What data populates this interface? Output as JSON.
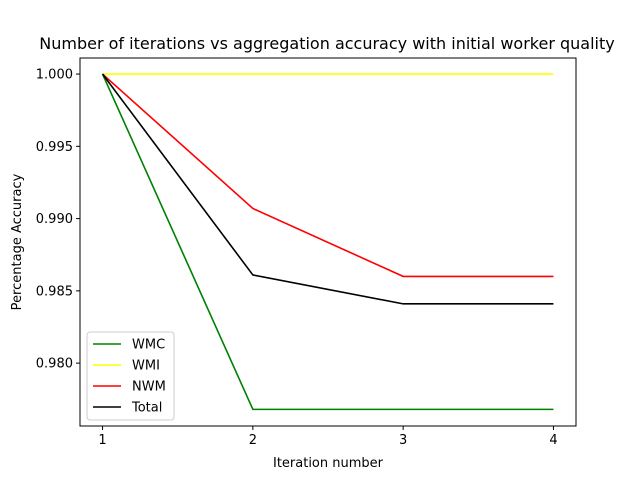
{
  "chart_data": {
    "type": "line",
    "title": "Number of iterations vs aggregation accuracy with initial worker quality",
    "xlabel": "Iteration number",
    "ylabel": "Percentage Accuracy",
    "x": [
      1,
      2,
      3,
      4
    ],
    "x_ticks": [
      "1",
      "2",
      "3",
      "4"
    ],
    "y_ticks": [
      "0.980",
      "0.985",
      "0.990",
      "0.995",
      "1.000"
    ],
    "xlim": [
      0.85,
      4.15
    ],
    "ylim": [
      0.97565,
      1.00111
    ],
    "legend_position": "lower-left",
    "series": [
      {
        "name": "WMC",
        "color": "#008000",
        "values": [
          1.0,
          0.9768,
          0.9768,
          0.9768
        ]
      },
      {
        "name": "WMI",
        "color": "#ffff00",
        "values": [
          1.0,
          1.0,
          1.0,
          1.0
        ]
      },
      {
        "name": "NWM",
        "color": "#ff0000",
        "values": [
          1.0,
          0.9907,
          0.986,
          0.986
        ]
      },
      {
        "name": "Total",
        "color": "#000000",
        "values": [
          1.0,
          0.9861,
          0.9841,
          0.9841
        ]
      }
    ]
  }
}
